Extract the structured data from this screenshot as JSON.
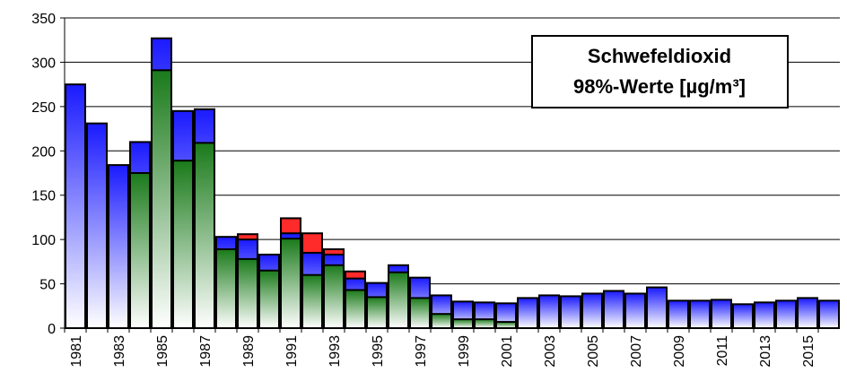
{
  "chart_data": {
    "type": "bar",
    "overlap": true,
    "title": "Schwefeldioxid",
    "subtitle": "98%-Werte [µg/m³]",
    "categories": [
      "1981",
      null,
      "1983",
      null,
      "1985",
      null,
      "1987",
      null,
      "1989",
      null,
      "1991",
      null,
      "1993",
      null,
      "1995",
      null,
      "1997",
      null,
      "1999",
      null,
      "2001",
      null,
      "2003",
      null,
      "2005",
      null,
      "2007",
      null,
      "2009",
      null,
      "2011",
      null,
      "2013",
      null,
      "2015",
      null
    ],
    "series": [
      {
        "color": "#ff2a2a",
        "values": [
          null,
          null,
          null,
          null,
          null,
          null,
          null,
          null,
          106,
          null,
          124,
          107,
          89,
          64,
          null,
          null,
          null,
          null,
          null,
          null,
          null,
          null,
          null,
          null,
          null,
          null,
          null,
          null,
          null,
          null,
          null,
          null,
          null,
          null,
          null,
          null
        ]
      },
      {
        "color": "#1a1aff",
        "values": [
          275,
          231,
          184,
          210,
          327,
          245,
          247,
          103,
          100,
          83,
          107,
          85,
          83,
          56,
          51,
          71,
          57,
          37,
          30,
          29,
          28,
          34,
          37,
          36,
          39,
          42,
          39,
          46,
          31,
          31,
          32,
          27,
          29,
          31,
          34,
          31
        ]
      },
      {
        "color": "#1a7a1a",
        "values": [
          null,
          null,
          null,
          175,
          291,
          189,
          209,
          89,
          78,
          65,
          101,
          60,
          71,
          43,
          35,
          63,
          34,
          16,
          10,
          10,
          7,
          null,
          null,
          null,
          null,
          null,
          null,
          null,
          null,
          null,
          null,
          null,
          null,
          null,
          null,
          null
        ]
      }
    ],
    "ylim": [
      0,
      350
    ],
    "yticks": [
      0,
      50,
      100,
      150,
      200,
      250,
      300,
      350
    ],
    "grid": true
  }
}
